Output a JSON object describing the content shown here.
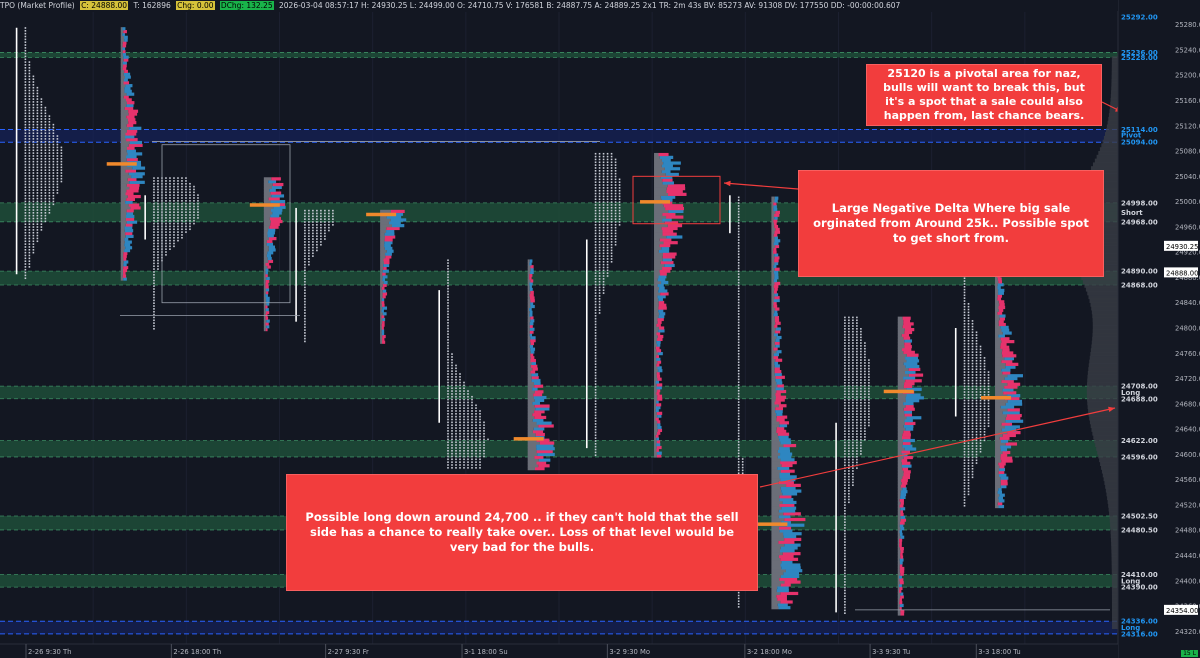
{
  "header": {
    "study": "TPO (Market Profile)",
    "last": "C: 24888.00",
    "ticks": "T: 162896",
    "chg": "Chg: 0.00",
    "dchg": "DChg: 132.25",
    "info": "2026-03-04 08:57:17 H: 24930.25 L: 24499.00 O: 24710.75 V: 176581 B: 24887.75 A: 24889.25 2x1 TR: 2m 43s BV: 85273 AV: 91308 DV: 177550 DD: -00:00:00.607"
  },
  "chart_data": {
    "type": "market-profile",
    "ylim": [
      24300,
      25300
    ],
    "y_ticks": [
      25280,
      25240,
      25200,
      25160,
      25120,
      25080,
      25040,
      25000,
      24960,
      24920,
      24880,
      24840,
      24800,
      24760,
      24720,
      24680,
      24640,
      24600,
      24560,
      24520,
      24480,
      24440,
      24400,
      24360,
      24320
    ],
    "price_labels": [
      {
        "price": 25292,
        "text": "25292.00",
        "color": "#2196f3"
      },
      {
        "price": 25236,
        "text": "25236.00",
        "color": "#2196f3"
      },
      {
        "price": 25228,
        "text": "25228.00",
        "color": "#2196f3"
      },
      {
        "price": 25114,
        "text": "25114.00",
        "color": "#2196f3"
      },
      {
        "price": 25105,
        "text": "Pivot",
        "color": "#2196f3"
      },
      {
        "price": 25094,
        "text": "25094.00",
        "color": "#2196f3"
      },
      {
        "price": 24998,
        "text": "24998.00",
        "color": "#d1d4dc"
      },
      {
        "price": 24983,
        "text": "Short",
        "color": "#d1d4dc"
      },
      {
        "price": 24968,
        "text": "24968.00",
        "color": "#d1d4dc"
      },
      {
        "price": 24890,
        "text": "24890.00",
        "color": "#d1d4dc"
      },
      {
        "price": 24868,
        "text": "24868.00",
        "color": "#d1d4dc"
      },
      {
        "price": 24708,
        "text": "24708.00",
        "color": "#d1d4dc"
      },
      {
        "price": 24698,
        "text": "Long",
        "color": "#d1d4dc"
      },
      {
        "price": 24688,
        "text": "24688.00",
        "color": "#d1d4dc"
      },
      {
        "price": 24622,
        "text": "24622.00",
        "color": "#d1d4dc"
      },
      {
        "price": 24596,
        "text": "24596.00",
        "color": "#d1d4dc"
      },
      {
        "price": 24502.5,
        "text": "24502.50",
        "color": "#d1d4dc"
      },
      {
        "price": 24480.5,
        "text": "24480.50",
        "color": "#d1d4dc"
      },
      {
        "price": 24410,
        "text": "24410.00",
        "color": "#d1d4dc"
      },
      {
        "price": 24400,
        "text": "Long",
        "color": "#d1d4dc"
      },
      {
        "price": 24390,
        "text": "24390.00",
        "color": "#d1d4dc"
      },
      {
        "price": 24336,
        "text": "24336.00",
        "color": "#2196f3"
      },
      {
        "price": 24326,
        "text": "Long",
        "color": "#2196f3"
      },
      {
        "price": 24316,
        "text": "24316.00",
        "color": "#2196f3"
      }
    ],
    "current_price_boxes": [
      {
        "price": 24930,
        "text": "24930.25"
      },
      {
        "price": 24888,
        "text": "24888.00"
      },
      {
        "price": 24354,
        "text": "24354.00"
      }
    ],
    "zones": [
      {
        "from": 25228,
        "to": 25236,
        "kind": "green"
      },
      {
        "from": 25094,
        "to": 25114,
        "kind": "blue"
      },
      {
        "from": 24968,
        "to": 24998,
        "kind": "green"
      },
      {
        "from": 24868,
        "to": 24890,
        "kind": "green"
      },
      {
        "from": 24688,
        "to": 24708,
        "kind": "green"
      },
      {
        "from": 24596,
        "to": 24622,
        "kind": "green"
      },
      {
        "from": 24480.5,
        "to": 24502.5,
        "kind": "green"
      },
      {
        "from": 24390,
        "to": 24410,
        "kind": "green"
      },
      {
        "from": 24316,
        "to": 24336,
        "kind": "blue"
      }
    ],
    "x_labels": [
      {
        "text": "2-26  9:30  Th",
        "pos": 0.0
      },
      {
        "text": "2-26  18:00  Th",
        "pos": 0.13
      },
      {
        "text": "2-27  9:30  Fr",
        "pos": 0.268
      },
      {
        "text": "3-1  18:00  Su",
        "pos": 0.39
      },
      {
        "text": "3-2  9:30  Mo",
        "pos": 0.52
      },
      {
        "text": "3-2  18:00  Mo",
        "pos": 0.643
      },
      {
        "text": "3-3  9:30  Tu",
        "pos": 0.755
      },
      {
        "text": "3-3  18:00  Tu",
        "pos": 0.85
      }
    ],
    "sessions": [
      {
        "tpo_start": 0.022,
        "bars_start": 0.108,
        "high": 25280,
        "low": 24880,
        "poc": 25060,
        "tpo_w": 40,
        "bar_w": 24,
        "range_line": [
          24885,
          25275
        ]
      },
      {
        "tpo_start": 0.137,
        "bars_start": 0.236,
        "high": 25040,
        "low": 24800,
        "poc": 24995,
        "tpo_w": 50,
        "bar_w": 22,
        "range_line": [
          24940,
          25010
        ]
      },
      {
        "tpo_start": 0.272,
        "bars_start": 0.34,
        "high": 24990,
        "low": 24780,
        "poc": 24980,
        "tpo_w": 32,
        "bar_w": 25,
        "range_line": [
          24810,
          24990
        ]
      },
      {
        "tpo_start": 0.4,
        "bars_start": 0.472,
        "high": 24910,
        "low": 24580,
        "poc": 24625,
        "tpo_w": 42,
        "bar_w": 26,
        "range_line": [
          24650,
          24860
        ]
      },
      {
        "tpo_start": 0.532,
        "bars_start": 0.585,
        "high": 25080,
        "low": 24600,
        "poc": 25000,
        "tpo_w": 28,
        "bar_w": 30,
        "range_line": [
          24610,
          24940
        ]
      },
      {
        "tpo_start": 0.66,
        "bars_start": 0.69,
        "high": 25010,
        "low": 24360,
        "poc": 24490,
        "tpo_w": 8,
        "bar_w": 32,
        "range_line": [
          24950,
          25010
        ]
      },
      {
        "tpo_start": 0.755,
        "bars_start": 0.803,
        "high": 24820,
        "low": 24350,
        "poc": 24700,
        "tpo_w": 30,
        "bar_w": 24,
        "range_line": [
          24350,
          24650
        ]
      },
      {
        "tpo_start": 0.862,
        "bars_start": 0.89,
        "high": 24920,
        "low": 24520,
        "poc": 24690,
        "tpo_w": 30,
        "bar_w": 28,
        "range_line": [
          24660,
          24800
        ]
      }
    ]
  },
  "notes": {
    "pivot_note": "25120 is a pivotal area for naz, bulls will want to break this, but it's a spot that a sale could also happen from, last chance bears.",
    "delta_note": "Large Negative Delta Where big sale orginated from Around 25k.. Possible spot to get short from.",
    "long_note": "Possible long down around 24,700 .. if they can't hold that the sell side has a chance to really take over.. Loss of that level would be very bad for the bulls."
  },
  "status": {
    "tf": "15 L"
  },
  "colors": {
    "bg": "#131722",
    "green_zone": "#1e4d38",
    "blue_line": "#2962ff",
    "note_red": "#f23d3d",
    "buy": "#2e86c1",
    "sell": "#e6326c",
    "poc": "#f0892c"
  }
}
